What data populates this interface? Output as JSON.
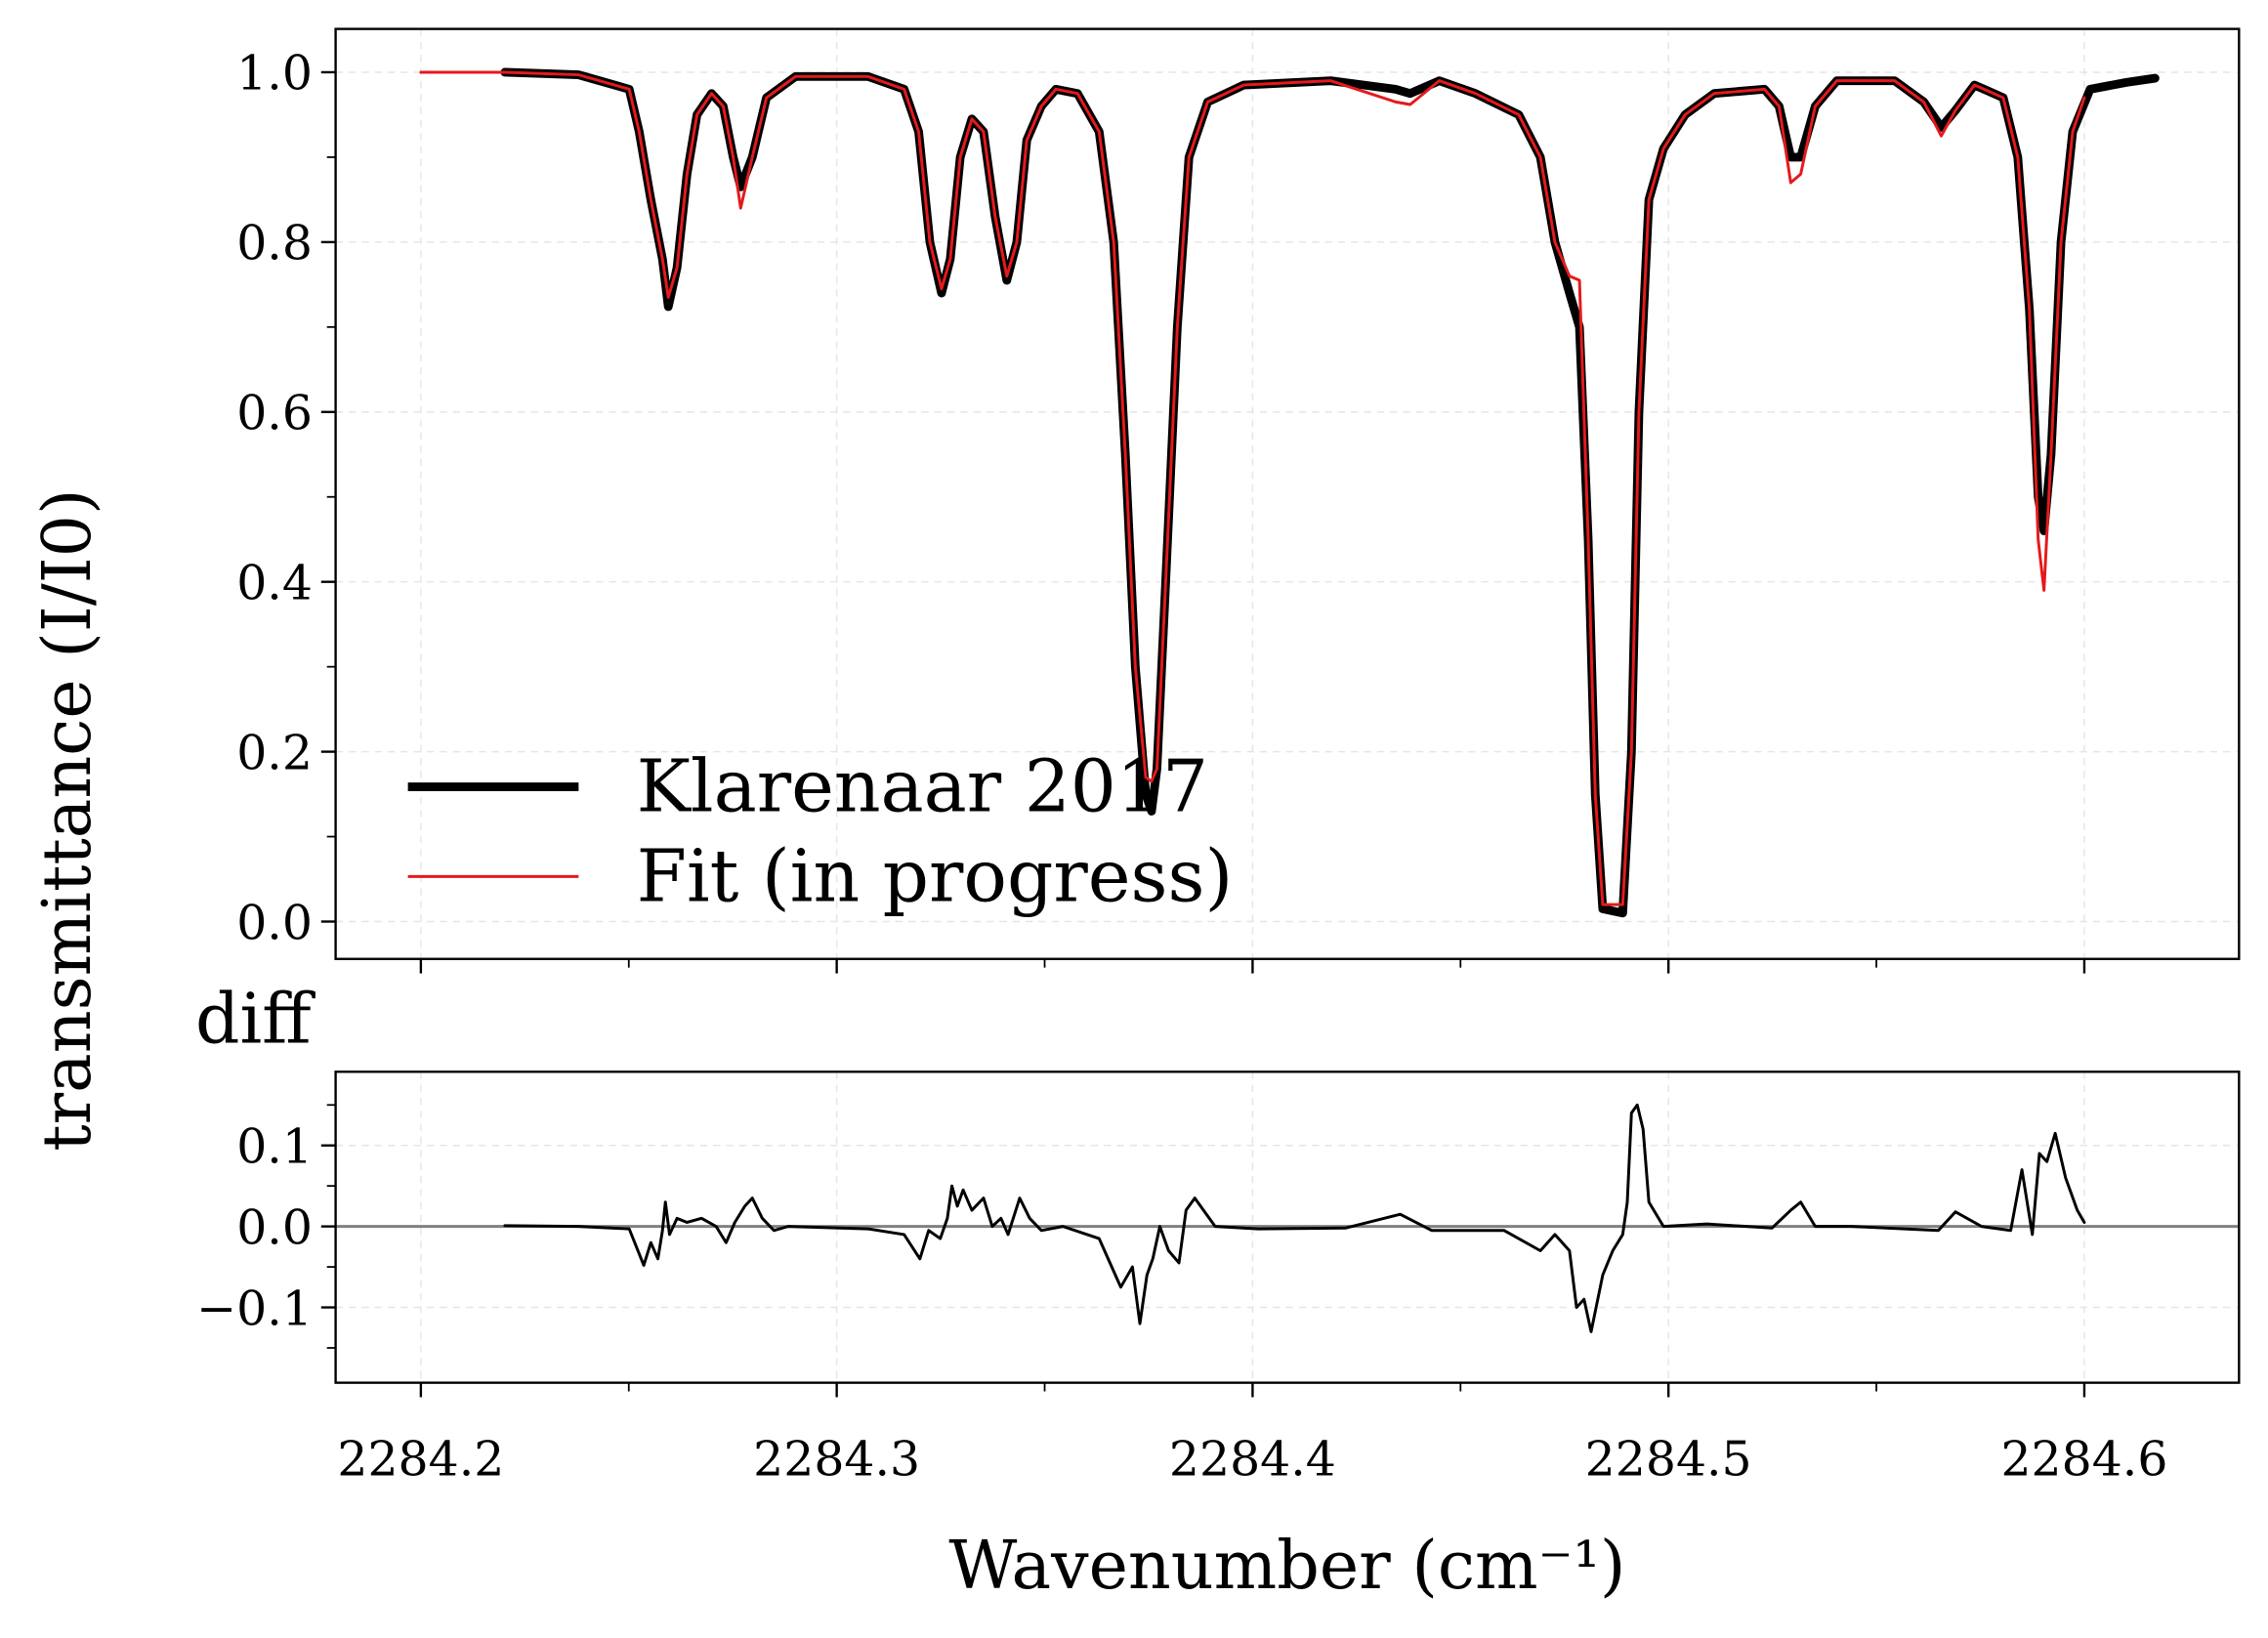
{
  "chart_data": [
    {
      "type": "line",
      "ylabel": "transmittance (I/I0)",
      "xlim": [
        2284.1795,
        2284.6372
      ],
      "xticks": [
        2284.2,
        2284.3,
        2284.4,
        2284.5,
        2284.6
      ],
      "xminorticks": [
        2284.25,
        2284.35,
        2284.45,
        2284.55
      ],
      "show_xtick_labels": false,
      "ylim": [
        -0.044,
        1.051
      ],
      "yticks": [
        {
          "value": 0,
          "label": "0.0"
        },
        {
          "value": 0.2,
          "label": "0.2"
        },
        {
          "value": 0.4,
          "label": "0.4"
        },
        {
          "value": 0.6,
          "label": "0.6"
        },
        {
          "value": 0.8,
          "label": "0.8"
        },
        {
          "value": 1,
          "label": "1.0"
        }
      ],
      "yminorticks": [
        0.1,
        0.3,
        0.5,
        0.7,
        0.9
      ],
      "grid": true,
      "legend": "lower left",
      "series": [
        {
          "name": "Klarenaar 2017",
          "color": "#000000",
          "linewidth": 6,
          "x": [
            2284.2202,
            2284.2379,
            2284.2501,
            2284.2525,
            2284.2553,
            2284.2581,
            2284.2595,
            2284.2616,
            2284.264,
            2284.2664,
            2284.2699,
            2284.2727,
            2284.2751,
            2284.2769,
            2284.2797,
            2284.2831,
            2284.2901,
            2284.3075,
            2284.3162,
            2284.3197,
            2284.3224,
            2284.3252,
            2284.3273,
            2284.3297,
            2284.3325,
            2284.3353,
            2284.3381,
            2284.3409,
            2284.3433,
            2284.3457,
            2284.3492,
            2284.3527,
            2284.3579,
            2284.3631,
            2284.3666,
            2284.3694,
            2284.3718,
            2284.3743,
            2284.3757,
            2284.377,
            2284.3791,
            2284.3819,
            2284.3847,
            2284.3892,
            2284.3979,
            2284.4188,
            2284.4344,
            2284.4379,
            2284.4449,
            2284.4536,
            2284.464,
            2284.4692,
            2284.4727,
            2284.4762,
            2284.4786,
            2284.4807,
            2284.4824,
            2284.4842,
            2284.489,
            2284.4911,
            2284.4929,
            2284.4953,
            2284.4988,
            2284.504,
            2284.511,
            2284.5231,
            2284.5266,
            2284.5294,
            2284.5318,
            2284.5353,
            2284.5405,
            2284.5544,
            2284.5614,
            2284.5656,
            2284.569,
            2284.5736,
            2284.5805,
            2284.584,
            2284.5868,
            2284.5889,
            2284.5903,
            2284.592,
            2284.5944,
            2284.5972,
            2284.6014,
            2284.6101,
            2284.617
          ],
          "values": [
            1.0,
            0.997,
            0.98,
            0.93,
            0.85,
            0.78,
            0.724,
            0.77,
            0.88,
            0.95,
            0.975,
            0.96,
            0.9,
            0.865,
            0.9,
            0.97,
            0.995,
            0.995,
            0.98,
            0.93,
            0.8,
            0.74,
            0.78,
            0.9,
            0.945,
            0.93,
            0.83,
            0.755,
            0.8,
            0.92,
            0.96,
            0.98,
            0.975,
            0.93,
            0.8,
            0.55,
            0.3,
            0.15,
            0.13,
            0.18,
            0.4,
            0.7,
            0.9,
            0.965,
            0.985,
            0.99,
            0.98,
            0.975,
            0.99,
            0.975,
            0.95,
            0.9,
            0.8,
            0.74,
            0.7,
            0.45,
            0.15,
            0.015,
            0.01,
            0.2,
            0.6,
            0.85,
            0.91,
            0.95,
            0.975,
            0.98,
            0.96,
            0.9,
            0.9,
            0.96,
            0.99,
            0.99,
            0.965,
            0.935,
            0.955,
            0.985,
            0.97,
            0.9,
            0.72,
            0.5,
            0.46,
            0.55,
            0.8,
            0.93,
            0.98,
            0.988,
            0.993
          ]
        },
        {
          "name": "Fit (in progress)",
          "color": "#e41a1c",
          "linewidth": 2,
          "x": [
            2284.2,
            2284.2202,
            2284.2379,
            2284.2501,
            2284.2525,
            2284.2553,
            2284.2581,
            2284.2595,
            2284.2616,
            2284.264,
            2284.2664,
            2284.2699,
            2284.2727,
            2284.2751,
            2284.2769,
            2284.2797,
            2284.2831,
            2284.2901,
            2284.3075,
            2284.3162,
            2284.3197,
            2284.3224,
            2284.3252,
            2284.3273,
            2284.3297,
            2284.3325,
            2284.3353,
            2284.3381,
            2284.3409,
            2284.3433,
            2284.3457,
            2284.3492,
            2284.3527,
            2284.3579,
            2284.3631,
            2284.3666,
            2284.3694,
            2284.3718,
            2284.3743,
            2284.3757,
            2284.377,
            2284.3791,
            2284.3819,
            2284.3847,
            2284.3892,
            2284.3979,
            2284.4188,
            2284.4344,
            2284.4379,
            2284.4449,
            2284.4536,
            2284.464,
            2284.4692,
            2284.4727,
            2284.4762,
            2284.4786,
            2284.4807,
            2284.4824,
            2284.4842,
            2284.489,
            2284.4911,
            2284.4929,
            2284.4953,
            2284.4988,
            2284.504,
            2284.511,
            2284.5231,
            2284.5266,
            2284.5294,
            2284.5318,
            2284.5353,
            2284.5405,
            2284.5544,
            2284.5614,
            2284.5656,
            2284.569,
            2284.5736,
            2284.5805,
            2284.584,
            2284.5868,
            2284.5889,
            2284.5903,
            2284.592,
            2284.5944,
            2284.5972,
            2284.6
          ],
          "values": [
            1.0,
            1.0,
            0.997,
            0.98,
            0.93,
            0.85,
            0.78,
            0.735,
            0.77,
            0.88,
            0.95,
            0.975,
            0.96,
            0.9,
            0.84,
            0.9,
            0.97,
            0.995,
            0.995,
            0.98,
            0.93,
            0.8,
            0.745,
            0.78,
            0.9,
            0.945,
            0.93,
            0.83,
            0.76,
            0.8,
            0.92,
            0.96,
            0.98,
            0.975,
            0.93,
            0.8,
            0.55,
            0.3,
            0.17,
            0.165,
            0.18,
            0.4,
            0.7,
            0.9,
            0.965,
            0.985,
            0.99,
            0.965,
            0.962,
            0.99,
            0.975,
            0.95,
            0.9,
            0.8,
            0.76,
            0.755,
            0.45,
            0.15,
            0.02,
            0.02,
            0.2,
            0.6,
            0.85,
            0.91,
            0.95,
            0.975,
            0.98,
            0.96,
            0.87,
            0.88,
            0.96,
            0.99,
            0.99,
            0.965,
            0.925,
            0.955,
            0.985,
            0.97,
            0.9,
            0.72,
            0.45,
            0.39,
            0.55,
            0.8,
            0.93,
            0.97
          ]
        }
      ]
    },
    {
      "type": "line",
      "title": "diff",
      "xlabel": "Wavenumber (cm⁻¹)",
      "xlim": [
        2284.1795,
        2284.6372
      ],
      "xticks": [
        2284.2,
        2284.3,
        2284.4,
        2284.5,
        2284.6
      ],
      "xminorticks": [
        2284.25,
        2284.35,
        2284.45,
        2284.55
      ],
      "show_xtick_labels": true,
      "ylim": [
        -0.193,
        0.191
      ],
      "yticks": [
        {
          "value": -0.1,
          "label": "−0.1"
        },
        {
          "value": 0,
          "label": "0.0"
        },
        {
          "value": 0.1,
          "label": "0.1"
        }
      ],
      "yminorticks": [
        -0.15,
        -0.05,
        0.05,
        0.15
      ],
      "grid": true,
      "zero_line": true,
      "series": [
        {
          "color": "#000000",
          "linewidth": 2,
          "x": [
            2284.2202,
            2284.2379,
            2284.2501,
            2284.2536,
            2284.2553,
            2284.257,
            2284.2581,
            2284.2588,
            2284.2598,
            2284.2616,
            2284.264,
            2284.2675,
            2284.271,
            2284.2734,
            2284.2755,
            2284.2779,
            2284.2797,
            2284.2821,
            2284.2849,
            2284.2883,
            2284.3075,
            2284.3162,
            2284.32,
            2284.3221,
            2284.3249,
            2284.3266,
            2284.3277,
            2284.329,
            2284.3304,
            2284.3325,
            2284.3353,
            2284.3374,
            2284.3395,
            2284.3412,
            2284.344,
            2284.3464,
            2284.3492,
            2284.3544,
            2284.3631,
            2284.3683,
            2284.3711,
            2284.3729,
            2284.3746,
            2284.376,
            2284.3777,
            2284.3798,
            2284.3823,
            2284.384,
            2284.3861,
            2284.391,
            2284.4014,
            2284.4223,
            2284.4355,
            2284.4431,
            2284.4605,
            2284.4692,
            2284.4727,
            2284.4762,
            2284.4779,
            2284.4797,
            2284.4814,
            2284.4842,
            2284.4866,
            2284.489,
            2284.4901,
            2284.4911,
            2284.4925,
            2284.4939,
            2284.4953,
            2284.4988,
            2284.5092,
            2284.5249,
            2284.5294,
            2284.5318,
            2284.5353,
            2284.544,
            2284.5649,
            2284.569,
            2284.5753,
            2284.5823,
            2284.585,
            2284.5875,
            2284.5892,
            2284.591,
            2284.593,
            2284.5955,
            2284.5983,
            2284.6
          ],
          "values": [
            0.001,
            0,
            -0.003,
            -0.048,
            -0.02,
            -0.04,
            -0.005,
            0.03,
            -0.01,
            0.01,
            0.005,
            0.01,
            0,
            -0.02,
            0.005,
            0.025,
            0.035,
            0.01,
            -0.005,
            0,
            -0.003,
            -0.01,
            -0.04,
            -0.005,
            -0.015,
            0.01,
            0.05,
            0.025,
            0.045,
            0.02,
            0.035,
            0,
            0.01,
            -0.01,
            0.035,
            0.01,
            -0.005,
            0,
            -0.015,
            -0.075,
            -0.05,
            -0.12,
            -0.06,
            -0.04,
            0,
            -0.03,
            -0.045,
            0.02,
            0.035,
            0,
            -0.003,
            -0.002,
            0.015,
            -0.005,
            -0.005,
            -0.03,
            -0.01,
            -0.03,
            -0.1,
            -0.09,
            -0.13,
            -0.06,
            -0.03,
            -0.01,
            0.03,
            0.14,
            0.15,
            0.12,
            0.03,
            0,
            0.003,
            -0.002,
            0.02,
            0.03,
            0,
            0,
            -0.005,
            0.018,
            0,
            -0.005,
            0.07,
            -0.01,
            0.09,
            0.08,
            0.115,
            0.06,
            0.02,
            0.005
          ]
        }
      ]
    }
  ]
}
